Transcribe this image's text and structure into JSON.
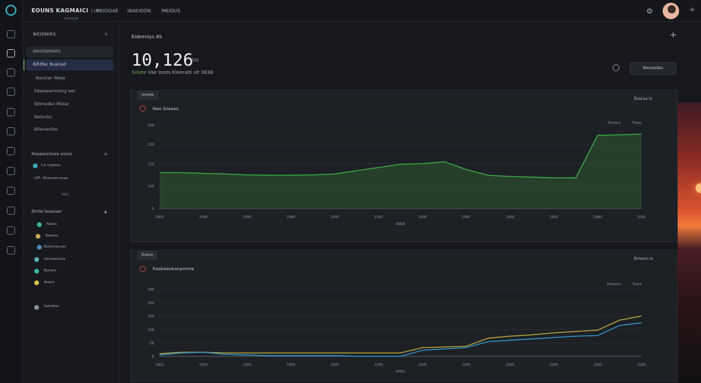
{
  "topbar": {
    "brand": "EOUNS KAGMAICI",
    "brand_suffix": "118",
    "brand_sub": "PAUSON",
    "nav": [
      "MEIOGAE",
      "IBAEIOON",
      "MEIOUS"
    ]
  },
  "sidebar": {
    "header": "WEIDNIRS",
    "items": [
      {
        "label": "ANVDWMARS",
        "state": "muted"
      },
      {
        "label": "Bifidfec Bvalced",
        "state": "selected"
      },
      {
        "label": "Naxstan Wage",
        "state": "normal"
      },
      {
        "label": "Edessewrmiong wer",
        "state": "normal"
      },
      {
        "label": "Biltmedeo Mloiar",
        "state": "normal"
      },
      {
        "label": "Belionlsc",
        "state": "normal"
      },
      {
        "label": "Billenenlles",
        "state": "normal"
      }
    ],
    "section1": {
      "title": "Noeeennmee snons",
      "rows": [
        {
          "label": "Ca ingeles",
          "dot": "#3aa8b8"
        },
        {
          "label": "UIF- Sheradnnoae",
          "dot": ""
        }
      ],
      "sublabel": "MRL"
    },
    "section2": {
      "title": "Bmlie leasoaer",
      "rows": [
        {
          "label": "Naixs",
          "dot": "#3fb7a3"
        },
        {
          "label": "Aaeron",
          "dot": "#c7a75a"
        },
        {
          "label": "Bolamacuer",
          "dot": "#4a8dbf"
        },
        {
          "label": "Vamaeucks",
          "dot": "#5ab0b8"
        },
        {
          "label": "Banels",
          "dot": "#3fb7a3"
        },
        {
          "label": "Aoars",
          "dot": "#d6c24a"
        },
        {
          "label": "Salodns",
          "dot": "#8a8e96"
        }
      ]
    }
  },
  "header": {
    "page_label": "Eideenlys 8S",
    "big_number": "10,126",
    "big_unit": "030",
    "sub_prefix": "Solate",
    "sub_rest": "Vae Isees Kleerabl vit 3838",
    "search_button": "Beoaadas"
  },
  "panel1": {
    "tab": "Isoesb",
    "title": "Neo Sosees",
    "controls": "Basiaa   Is",
    "legend": "Tasseca",
    "legend_tail": "Tsasa",
    "colors": [
      "#3daa48"
    ],
    "chart_data": {
      "type": "area",
      "x": [
        "1000",
        "1000",
        "1000",
        "1000",
        "1000",
        "1000",
        "1000",
        "1000",
        "1000",
        "1000",
        "1000",
        "1000",
        "1000",
        "1000",
        "1000",
        "1000",
        "1000",
        "1000",
        "1000",
        "1000",
        "1000",
        "1000",
        "1000"
      ],
      "x_tick_labels": [
        "1900",
        "1990",
        "1090",
        "1990",
        "1990",
        "1990",
        "1980",
        "1000",
        "1000",
        "1080",
        "1000",
        "1000",
        "1000",
        "1000",
        "1080",
        "1990",
        "1900",
        "1900",
        "1900",
        "1900",
        "1980",
        "1000",
        "1000"
      ],
      "x_axis_label": "ANGE",
      "y_ticks": [
        "5",
        "100",
        "150",
        "220",
        "256"
      ],
      "y_tick_values": [
        0,
        70,
        140,
        200,
        260
      ],
      "series": [
        {
          "name": "Tasseca",
          "values": [
            112,
            112,
            110,
            108,
            105,
            104,
            104,
            105,
            108,
            118,
            128,
            138,
            140,
            146,
            122,
            104,
            100,
            98,
            96,
            96,
            228,
            230,
            232
          ]
        }
      ],
      "ylim": [
        0,
        260
      ],
      "grid": true
    }
  },
  "panel2": {
    "tab": "Edaos",
    "title": "Rasbeeokanpmme",
    "controls": "Bmeon   Is",
    "legend": "Feoaoss",
    "legend_tail": "Tsara",
    "colors": [
      "#b9a545",
      "#3596c9"
    ],
    "chart_data": {
      "type": "line",
      "x_tick_labels": [
        "1902",
        "1009",
        "1000",
        "1000",
        "1000",
        "1000",
        "1000",
        "1000",
        "1000",
        "1000",
        "1000",
        "1000",
        "1000",
        "1000",
        "1000",
        "1000",
        "1000",
        "1000",
        "1000",
        "1000",
        "1000",
        "1000",
        "1000"
      ],
      "x_axis_label": "APRG",
      "y_ticks": [
        "8",
        "5B",
        "108",
        "109",
        "184",
        "196"
      ],
      "y_tick_values": [
        0,
        40,
        80,
        120,
        160,
        200
      ],
      "series": [
        {
          "name": "Feoaoss",
          "values": [
            8,
            12,
            12,
            10,
            10,
            10,
            10,
            10,
            10,
            10,
            10,
            10,
            26,
            28,
            30,
            54,
            60,
            64,
            70,
            74,
            78,
            108,
            120
          ]
        },
        {
          "name": "Tsara",
          "values": [
            4,
            10,
            12,
            6,
            4,
            2,
            2,
            2,
            2,
            0,
            0,
            0,
            18,
            22,
            26,
            44,
            48,
            52,
            56,
            60,
            62,
            92,
            100
          ]
        }
      ],
      "ylim": [
        0,
        200
      ],
      "grid": true
    }
  }
}
